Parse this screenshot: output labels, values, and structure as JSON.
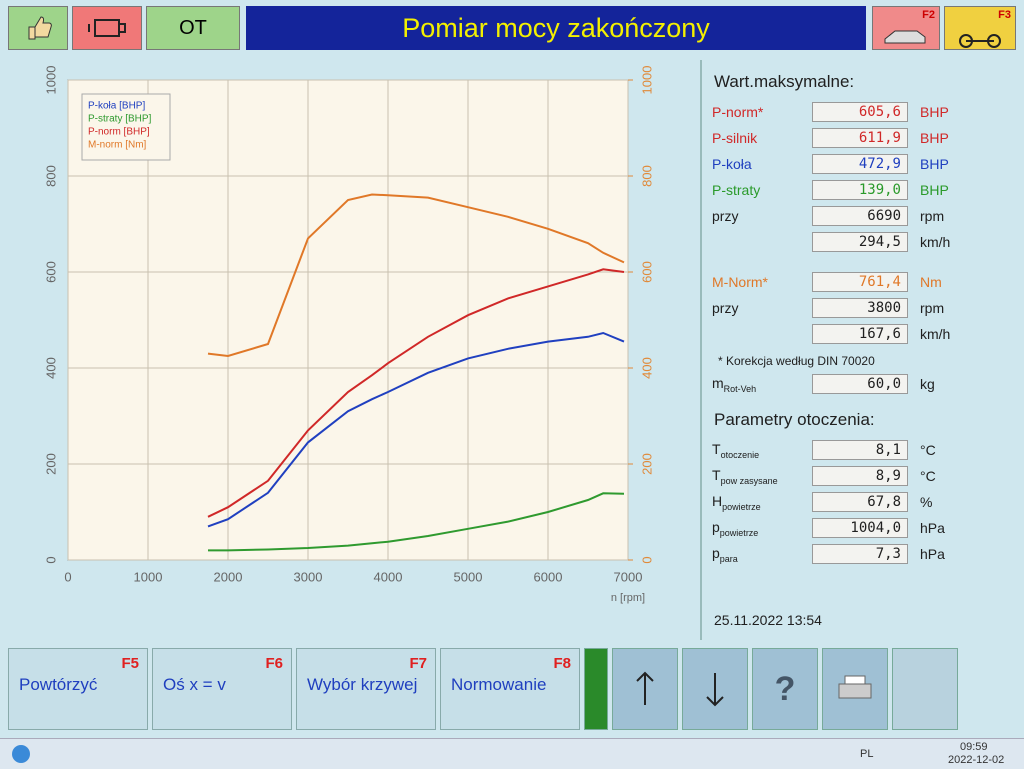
{
  "header": {
    "ot": "OT",
    "title": "Pomiar mocy zakończony",
    "f2": "F2",
    "f3": "F3"
  },
  "chart_data": {
    "type": "line",
    "x_label": "n [rpm]",
    "x": [
      1750,
      2000,
      2500,
      3000,
      3500,
      3800,
      4000,
      4500,
      5000,
      5500,
      6000,
      6500,
      6690,
      6950
    ],
    "xlim": [
      0,
      7000
    ],
    "xticks": [
      0,
      1000,
      2000,
      3000,
      4000,
      5000,
      6000,
      7000
    ],
    "ylim": [
      0,
      1000
    ],
    "yticks": [
      0,
      200,
      400,
      600,
      800,
      1000
    ],
    "y2lim": [
      0,
      1000
    ],
    "y2ticks": [
      0,
      200,
      400,
      600,
      800,
      1000
    ],
    "y2_color": "#e08a3a",
    "grid": true,
    "legend": "upper-left",
    "series": [
      {
        "name": "P-koła [BHP]",
        "color": "#2040c0",
        "values": [
          70,
          85,
          140,
          245,
          310,
          335,
          350,
          390,
          420,
          440,
          455,
          465,
          472.9,
          455
        ]
      },
      {
        "name": "P-straty [BHP]",
        "color": "#2f9a2f",
        "values": [
          20,
          20,
          22,
          25,
          30,
          35,
          38,
          50,
          65,
          80,
          100,
          125,
          139,
          138
        ]
      },
      {
        "name": "P-norm [BHP]",
        "color": "#d02828",
        "values": [
          90,
          110,
          165,
          270,
          350,
          385,
          410,
          465,
          510,
          545,
          570,
          595,
          605.6,
          600
        ]
      },
      {
        "name": "M-norm [Nm]",
        "color": "#e07828",
        "axis": "y2",
        "values": [
          430,
          425,
          450,
          670,
          750,
          761.4,
          760,
          755,
          735,
          715,
          690,
          660,
          640,
          620
        ]
      }
    ]
  },
  "panel": {
    "title": "Wart.maksymalne:",
    "rows": [
      {
        "label": "P-norm*",
        "value": "605,6",
        "unit": "BHP",
        "color": "#d02828"
      },
      {
        "label": "P-silnik",
        "value": "611,9",
        "unit": "BHP",
        "color": "#d02828"
      },
      {
        "label": "P-koła",
        "value": "472,9",
        "unit": "BHP",
        "color": "#1f3fbf"
      },
      {
        "label": "P-straty",
        "value": "139,0",
        "unit": "BHP",
        "color": "#2a9a2a"
      },
      {
        "label": "przy",
        "value": "6690",
        "unit": "rpm",
        "color": "#202020"
      },
      {
        "value": "294,5",
        "unit": "km/h",
        "color": "#202020"
      },
      {
        "label": "M-Norm*",
        "value": "761,4",
        "unit": "Nm",
        "color": "#e07828"
      },
      {
        "label": "przy",
        "value": "3800",
        "unit": "rpm",
        "color": "#202020"
      },
      {
        "value": "167,6",
        "unit": "km/h",
        "color": "#202020"
      }
    ],
    "note": "* Korekcja według DIN 70020",
    "mass": {
      "label": "m",
      "sub": "Rot-Veh",
      "value": "60,0",
      "unit": "kg"
    },
    "env_title": "Parametry otoczenia:",
    "env_rows": [
      {
        "label": "T",
        "sub": "otoczenie",
        "value": "8,1",
        "unit": "°C"
      },
      {
        "label": "T",
        "sub": "pow zasysane",
        "value": "8,9",
        "unit": "°C"
      },
      {
        "label": "H",
        "sub": "powietrze",
        "value": "67,8",
        "unit": "%"
      },
      {
        "label": "p",
        "sub": "powietrze",
        "value": "1004,0",
        "unit": "hPa"
      },
      {
        "label": "p",
        "sub": "para",
        "value": "7,3",
        "unit": "hPa"
      }
    ],
    "datetime": "25.11.2022  13:54"
  },
  "buttons": [
    {
      "label": "Powtórzyć",
      "key": "F5"
    },
    {
      "label": "Oś x = v",
      "key": "F6"
    },
    {
      "label": "Wybór krzywej",
      "key": "F7"
    },
    {
      "label": "Normowanie",
      "key": "F8"
    }
  ],
  "help": "?",
  "taskbar": {
    "lang": "PL",
    "time": "09:59",
    "date": "2022-12-02"
  }
}
